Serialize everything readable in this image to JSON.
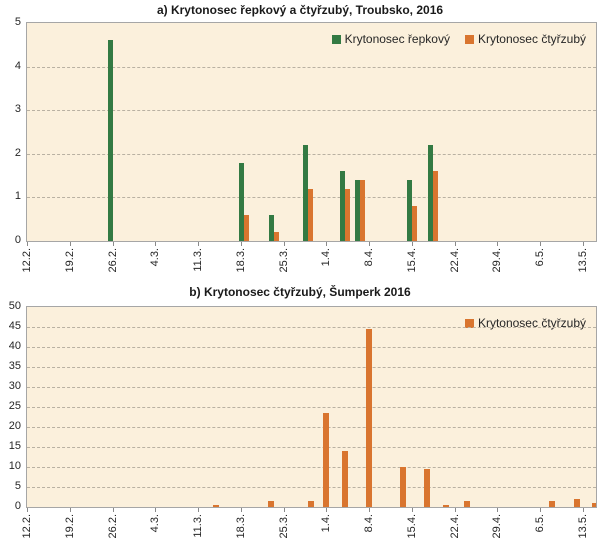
{
  "colors": {
    "series_green": "#337a43",
    "series_orange": "#d9752f",
    "plot_background": "#fbf0dc",
    "plot_border": "#a6a6a6",
    "gridline": "#b9b1a2",
    "text": "#262626"
  },
  "chart_data": [
    {
      "id": "a",
      "type": "bar",
      "title": "a) Krytonosec řepkový a čtyřzubý, Troubsko, 2016",
      "legend_position": "top-right-inside",
      "grid": "horizontal-dashed",
      "ylim": [
        0,
        5
      ],
      "y_ticks": [
        0,
        1,
        2,
        3,
        4,
        5
      ],
      "x_axis": {
        "tick_labels": [
          "12.2.",
          "19.2.",
          "26.2.",
          "4.3.",
          "11.3.",
          "18.3.",
          "25.3.",
          "1.4.",
          "8.4.",
          "15.4.",
          "22.4.",
          "29.4.",
          "6.5.",
          "13.5."
        ],
        "unit": "weekly date ticks, 2016; bar x = estimated days after 12.2.",
        "range_days": [
          0,
          93.5
        ]
      },
      "series": [
        {
          "name": "Krytonosec řepkový",
          "color": "#337a43",
          "data": [
            [
              14,
              4.6
            ],
            [
              35.5,
              1.8
            ],
            [
              40.5,
              0.6
            ],
            [
              46,
              2.2
            ],
            [
              52,
              1.6
            ],
            [
              54.5,
              1.4
            ],
            [
              63,
              1.4
            ],
            [
              66.5,
              2.2
            ]
          ]
        },
        {
          "name": "Krytonosec čtyřzubý",
          "color": "#d9752f",
          "data": [
            [
              35.5,
              0.6
            ],
            [
              40.5,
              0.2
            ],
            [
              46,
              1.2
            ],
            [
              52,
              1.2
            ],
            [
              54.5,
              1.4
            ],
            [
              63,
              0.8
            ],
            [
              66.5,
              1.6
            ]
          ]
        }
      ]
    },
    {
      "id": "b",
      "type": "bar",
      "title": "b) Krytonosec čtyřzubý, Šumperk 2016",
      "legend_position": "top-right-inside",
      "grid": "horizontal-dashed",
      "ylim": [
        0,
        50
      ],
      "y_ticks": [
        0,
        5,
        10,
        15,
        20,
        25,
        30,
        35,
        40,
        45,
        50
      ],
      "x_axis": {
        "tick_labels": [
          "12.2.",
          "19.2.",
          "26.2.",
          "4.3.",
          "11.3.",
          "18.3.",
          "25.3.",
          "1.4.",
          "8.4.",
          "15.4.",
          "22.4.",
          "29.4.",
          "6.5.",
          "13.5."
        ],
        "unit": "weekly date ticks, 2016; bar x = estimated days after 12.2.",
        "range_days": [
          0,
          93.5
        ]
      },
      "series": [
        {
          "name": "Krytonosec čtyřzubý",
          "color": "#d9752f",
          "data": [
            [
              31,
              0.5
            ],
            [
              40,
              1.5
            ],
            [
              46.5,
              1.5
            ],
            [
              49,
              23.5
            ],
            [
              52,
              14
            ],
            [
              56,
              44.5
            ],
            [
              61.5,
              10
            ],
            [
              65.5,
              9.5
            ],
            [
              68.5,
              0.5
            ],
            [
              72,
              1.5
            ],
            [
              86,
              1.5
            ],
            [
              90,
              2
            ],
            [
              93,
              1
            ]
          ]
        }
      ]
    }
  ]
}
